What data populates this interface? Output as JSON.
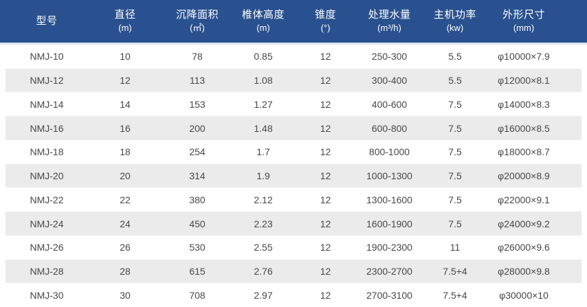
{
  "colors": {
    "header_bg": "#2A518F",
    "header_text": "#FFFFFF",
    "stripe": "#EBEBEB",
    "text": "#474747"
  },
  "table": {
    "columns": [
      {
        "key": "model",
        "label": "型号",
        "unit": ""
      },
      {
        "key": "diameter",
        "label": "直径",
        "unit": "(m)"
      },
      {
        "key": "settling-area",
        "label": "沉降面积",
        "unit": "(㎡)"
      },
      {
        "key": "cone-height",
        "label": "椎体高度",
        "unit": "(m)"
      },
      {
        "key": "taper",
        "label": "锥度",
        "unit": "(°)"
      },
      {
        "key": "water-capacity",
        "label": "处理水量",
        "unit": "(m³/h)"
      },
      {
        "key": "motor-power",
        "label": "主机功率",
        "unit": "(kw)"
      },
      {
        "key": "dimensions",
        "label": "外形尺寸",
        "unit": "(mm)"
      }
    ],
    "rows": [
      [
        "NMJ-10",
        "10",
        "78",
        "0.85",
        "12",
        "250-300",
        "5.5",
        "φ10000×7.9"
      ],
      [
        "NMJ-12",
        "12",
        "113",
        "1.08",
        "12",
        "300-400",
        "5.5",
        "φ12000×8.1"
      ],
      [
        "NMJ-14",
        "14",
        "153",
        "1.27",
        "12",
        "400-600",
        "7.5",
        "φ14000×8.3"
      ],
      [
        "NMJ-16",
        "16",
        "200",
        "1.48",
        "12",
        "600-800",
        "7.5",
        "φ16000×8.5"
      ],
      [
        "NMJ-18",
        "18",
        "254",
        "1.7",
        "12",
        "800-1000",
        "7.5",
        "φ18000×8.7"
      ],
      [
        "NMJ-20",
        "20",
        "314",
        "1.9",
        "12",
        "1000-1300",
        "7.5",
        "φ20000×8.9"
      ],
      [
        "NMJ-22",
        "22",
        "380",
        "2.12",
        "12",
        "1300-1600",
        "7.5",
        "φ22000×9.1"
      ],
      [
        "NMJ-24",
        "24",
        "450",
        "2.23",
        "12",
        "1600-1900",
        "7.5",
        "φ24000×9.2"
      ],
      [
        "NMJ-26",
        "26",
        "530",
        "2.55",
        "12",
        "1900-2300",
        "11",
        "φ26000×9.6"
      ],
      [
        "NMJ-28",
        "28",
        "615",
        "2.76",
        "12",
        "2300-2700",
        "7.5+4",
        "φ28000×9.8"
      ],
      [
        "NMJ-30",
        "30",
        "708",
        "2.97",
        "12",
        "2700-3100",
        "7.5+4",
        "φ30000×10"
      ]
    ]
  }
}
